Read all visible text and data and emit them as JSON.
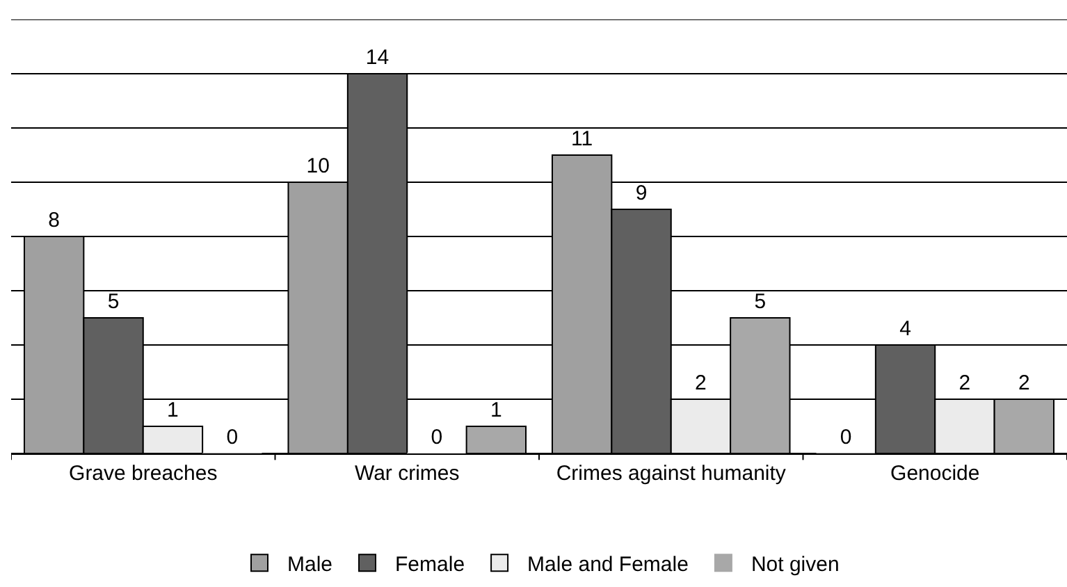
{
  "chart_data": {
    "type": "bar",
    "categories": [
      "Grave breaches",
      "War crimes",
      "Crimes against humanity",
      "Genocide"
    ],
    "series": [
      {
        "name": "Male",
        "color": "#a0a0a0",
        "values": [
          8,
          10,
          11,
          0
        ]
      },
      {
        "name": "Female",
        "color": "#606060",
        "values": [
          5,
          14,
          9,
          4
        ]
      },
      {
        "name": "Male and Female",
        "color": "#ebebeb",
        "values": [
          1,
          0,
          2,
          2
        ]
      },
      {
        "name": "Not given",
        "color": "#a8a8a8",
        "values": [
          0,
          1,
          5,
          2
        ]
      }
    ],
    "ylim": [
      0,
      16
    ],
    "yticks": [
      {
        "value": 0,
        "label": null
      },
      {
        "value": 2,
        "label": null
      },
      {
        "value": 4,
        "label": null
      },
      {
        "value": 6,
        "label": null
      },
      {
        "value": 8,
        "label": null
      },
      {
        "value": 10,
        "label": null
      },
      {
        "value": 12,
        "label": null
      },
      {
        "value": 14,
        "label": null
      },
      {
        "value": 16,
        "label": null
      }
    ],
    "tick_labels": "x",
    "grid": "y",
    "data_labels": true,
    "legend": "bottom"
  }
}
